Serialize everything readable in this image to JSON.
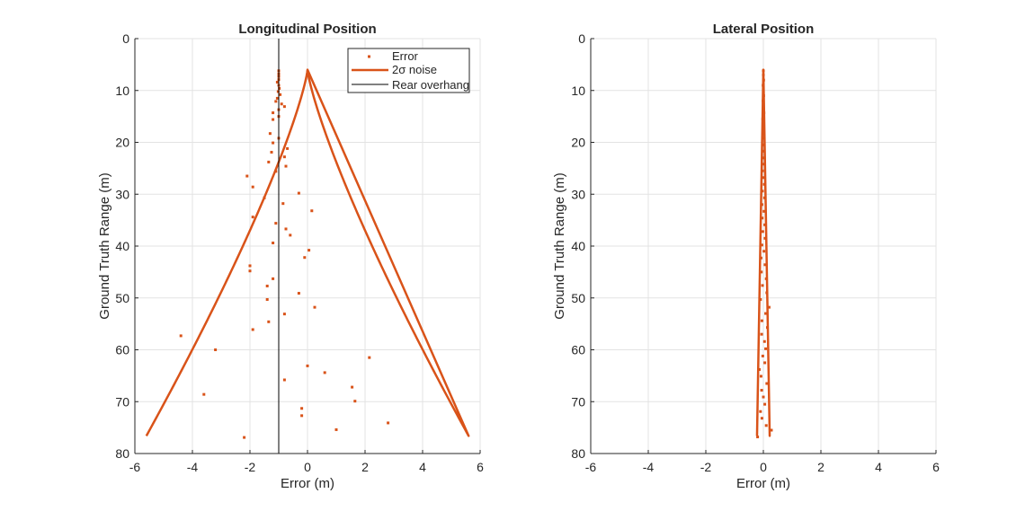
{
  "chart_data": [
    {
      "type": "scatter",
      "title": "Longitudinal Position",
      "xlabel": "Error (m)",
      "ylabel": "Ground Truth Range (m)",
      "xlim": [
        -6,
        6
      ],
      "ylim": [
        0,
        80
      ],
      "y_reversed": true,
      "xticks": [
        "-6",
        "-4",
        "-2",
        "0",
        "2",
        "4",
        "6"
      ],
      "yticks": [
        "0",
        "10",
        "20",
        "30",
        "40",
        "50",
        "60",
        "70",
        "80"
      ],
      "grid": true,
      "legend_position": "top-right",
      "colors": {
        "error": "#d95319",
        "noise": "#d95319",
        "overhang": "#000000"
      },
      "legend": [
        {
          "label": "Error",
          "style": "marker"
        },
        {
          "label": "2σ  noise",
          "style": "line"
        },
        {
          "label": "Rear overhang",
          "style": "thinline"
        }
      ],
      "series": [
        {
          "name": "Error",
          "kind": "points",
          "points": [
            [
              -1.0,
              6.2
            ],
            [
              -1.0,
              6.8
            ],
            [
              -1.0,
              7.3
            ],
            [
              -1.0,
              7.9
            ],
            [
              -1.05,
              8.4
            ],
            [
              -1.0,
              9.0
            ],
            [
              -0.98,
              9.6
            ],
            [
              -1.02,
              10.2
            ],
            [
              -0.95,
              10.8
            ],
            [
              -1.05,
              11.5
            ],
            [
              -1.1,
              12.1
            ],
            [
              -0.9,
              12.6
            ],
            [
              -0.8,
              13.1
            ],
            [
              -1.0,
              13.7
            ],
            [
              -1.2,
              14.3
            ],
            [
              -1.0,
              15.0
            ],
            [
              -1.2,
              15.6
            ],
            [
              -1.3,
              18.3
            ],
            [
              -1.0,
              19.2
            ],
            [
              -1.2,
              20.1
            ],
            [
              -0.7,
              21.2
            ],
            [
              -1.25,
              21.9
            ],
            [
              -0.8,
              22.8
            ],
            [
              -1.35,
              23.8
            ],
            [
              -0.75,
              24.6
            ],
            [
              -1.1,
              25.6
            ],
            [
              -2.1,
              26.5
            ],
            [
              -1.9,
              28.6
            ],
            [
              -1.5,
              30.7
            ],
            [
              -0.3,
              29.8
            ],
            [
              -0.85,
              31.8
            ],
            [
              0.15,
              33.2
            ],
            [
              -1.9,
              34.4
            ],
            [
              -1.1,
              35.6
            ],
            [
              -0.75,
              36.7
            ],
            [
              -0.6,
              37.9
            ],
            [
              -1.2,
              39.4
            ],
            [
              0.05,
              40.8
            ],
            [
              -0.1,
              42.2
            ],
            [
              -2.0,
              43.8
            ],
            [
              -2.0,
              44.8
            ],
            [
              -1.2,
              46.3
            ],
            [
              -1.4,
              47.7
            ],
            [
              -0.3,
              49.1
            ],
            [
              -1.4,
              50.3
            ],
            [
              0.25,
              51.8
            ],
            [
              -0.8,
              53.1
            ],
            [
              -1.35,
              54.6
            ],
            [
              -1.9,
              56.1
            ],
            [
              -4.4,
              57.3
            ],
            [
              -3.2,
              60.0
            ],
            [
              2.15,
              61.5
            ],
            [
              0.0,
              63.1
            ],
            [
              0.6,
              64.4
            ],
            [
              -0.8,
              65.8
            ],
            [
              1.55,
              67.2
            ],
            [
              -3.6,
              68.6
            ],
            [
              1.65,
              69.9
            ],
            [
              -0.2,
              71.3
            ],
            [
              -0.2,
              72.7
            ],
            [
              2.8,
              74.1
            ],
            [
              1.0,
              75.4
            ],
            [
              -2.2,
              76.9
            ]
          ]
        },
        {
          "name": "2σ  noise",
          "kind": "bound",
          "a": 5.6,
          "p": 1.25,
          "y0": 6.0,
          "y1": 76.6
        },
        {
          "name": "Rear overhang",
          "kind": "vline",
          "x": -1.0,
          "y0": 0,
          "y1": 80
        }
      ]
    },
    {
      "type": "scatter",
      "title": "Lateral Position",
      "xlabel": "Error (m)",
      "ylabel": "Ground Truth Range (m)",
      "xlim": [
        -6,
        6
      ],
      "ylim": [
        0,
        80
      ],
      "y_reversed": true,
      "xticks": [
        "-6",
        "-4",
        "-2",
        "0",
        "2",
        "4",
        "6"
      ],
      "yticks": [
        "0",
        "10",
        "20",
        "30",
        "40",
        "50",
        "60",
        "70",
        "80"
      ],
      "grid": true,
      "colors": {
        "error": "#d95319",
        "noise": "#d95319"
      },
      "series": [
        {
          "name": "Error",
          "kind": "points",
          "points": [
            [
              0.0,
              6.2
            ],
            [
              0.0,
              7.0
            ],
            [
              0.01,
              8.0
            ],
            [
              -0.01,
              9.0
            ],
            [
              0.0,
              10.0
            ],
            [
              0.01,
              11.0
            ],
            [
              -0.01,
              12.0
            ],
            [
              0.0,
              13.2
            ],
            [
              0.02,
              14.3
            ],
            [
              -0.02,
              15.5
            ],
            [
              0.0,
              16.7
            ],
            [
              0.01,
              18.0
            ],
            [
              -0.02,
              19.2
            ],
            [
              0.03,
              20.5
            ],
            [
              0.0,
              21.7
            ],
            [
              -0.03,
              23.0
            ],
            [
              0.02,
              24.2
            ],
            [
              -0.03,
              25.5
            ],
            [
              0.0,
              26.8
            ],
            [
              0.03,
              28.1
            ],
            [
              -0.03,
              29.4
            ],
            [
              0.04,
              30.7
            ],
            [
              -0.05,
              32.0
            ],
            [
              0.02,
              33.3
            ],
            [
              -0.04,
              34.6
            ],
            [
              0.05,
              35.9
            ],
            [
              -0.02,
              37.2
            ],
            [
              0.06,
              38.5
            ],
            [
              -0.05,
              39.8
            ],
            [
              0.02,
              41.0
            ],
            [
              -0.08,
              42.3
            ],
            [
              0.06,
              43.6
            ],
            [
              -0.07,
              45.0
            ],
            [
              0.1,
              46.3
            ],
            [
              -0.03,
              47.6
            ],
            [
              0.12,
              49.0
            ],
            [
              -0.1,
              50.3
            ],
            [
              0.2,
              51.8
            ],
            [
              0.08,
              53.0
            ],
            [
              -0.05,
              54.4
            ],
            [
              0.14,
              55.7
            ],
            [
              -0.06,
              57.0
            ],
            [
              0.04,
              58.4
            ],
            [
              0.08,
              59.8
            ],
            [
              -0.02,
              61.2
            ],
            [
              0.05,
              62.5
            ],
            [
              -0.14,
              63.8
            ],
            [
              -0.08,
              65.1
            ],
            [
              0.12,
              66.5
            ],
            [
              -0.06,
              67.8
            ],
            [
              0.0,
              69.1
            ],
            [
              0.05,
              70.5
            ],
            [
              -0.1,
              71.9
            ],
            [
              -0.05,
              73.2
            ],
            [
              0.1,
              74.6
            ],
            [
              0.28,
              75.5
            ],
            [
              -0.2,
              76.8
            ]
          ]
        },
        {
          "name": "2σ  noise",
          "kind": "bound",
          "a": 0.22,
          "p": 1.0,
          "y0": 6.0,
          "y1": 76.6
        }
      ]
    }
  ]
}
